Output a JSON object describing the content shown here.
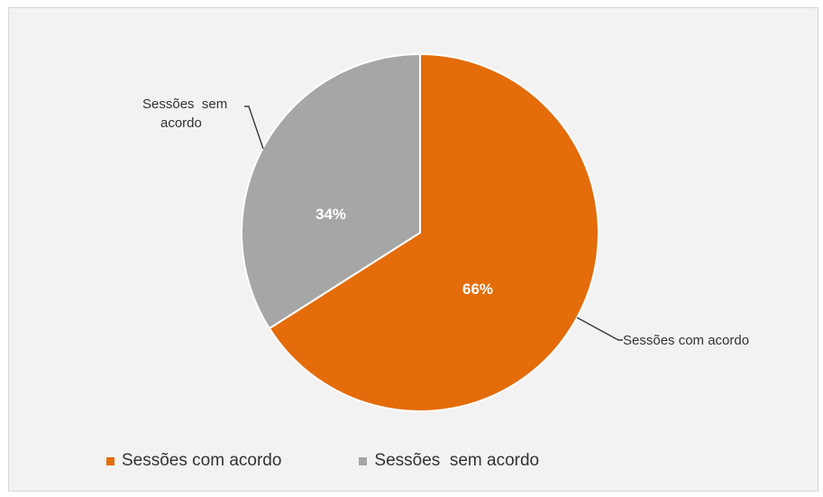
{
  "chart_data": {
    "type": "pie",
    "categories": [
      "Sessões com acordo",
      "Sessões  sem acordo"
    ],
    "values": [
      66,
      34
    ],
    "data_labels": [
      "66%",
      "34%"
    ],
    "colors": [
      "#e46c0a",
      "#a6a6a6"
    ],
    "title": "",
    "legend_position": "bottom",
    "callouts": {
      "com": "Sessões com acordo",
      "sem_line1": "Sessões  sem",
      "sem_line2": "acordo"
    }
  }
}
